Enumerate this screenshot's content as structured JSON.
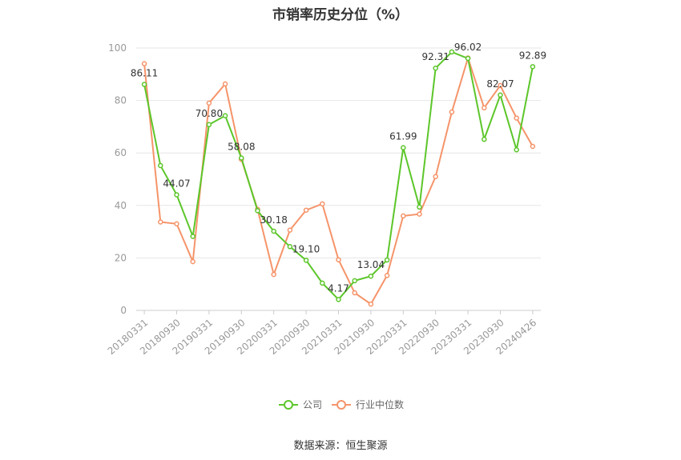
{
  "chart_data": {
    "type": "line",
    "title": "市销率历史分位（%）",
    "source": "数据来源：恒生聚源",
    "ylim": [
      0,
      100
    ],
    "yticks": [
      "0",
      "20",
      "40",
      "60",
      "80",
      "100"
    ],
    "x": [
      "20180331",
      "20180630",
      "20180930",
      "20181231",
      "20190331",
      "20190630",
      "20190930",
      "20191231",
      "20200331",
      "20200630",
      "20200930",
      "20201231",
      "20210331",
      "20210630",
      "20210930",
      "20211231",
      "20220331",
      "20220630",
      "20220930",
      "20221231",
      "20230331",
      "20230630",
      "20230930",
      "20231231",
      "20240426"
    ],
    "xtick_labels": [
      "20180331",
      "20180930",
      "20190331",
      "20190930",
      "20200331",
      "20200930",
      "20210331",
      "20210930",
      "20220331",
      "20220930",
      "20230331",
      "20230930",
      "20240426"
    ],
    "xtick_indices": [
      0,
      2,
      4,
      6,
      8,
      10,
      12,
      14,
      16,
      18,
      20,
      22,
      24
    ],
    "series": [
      {
        "name": "公司",
        "color": "#5cc62a",
        "values": [
          86.11,
          55.2,
          44.07,
          28.2,
          70.8,
          74.2,
          58.08,
          38.0,
          30.18,
          24.3,
          19.1,
          10.4,
          4.17,
          11.3,
          13.04,
          19.2,
          61.99,
          39.4,
          92.31,
          98.5,
          96.02,
          65.2,
          82.07,
          61.2,
          92.89
        ],
        "labels": {
          "0": "86.11",
          "2": "44.07",
          "4": "70.80",
          "6": "58.08",
          "8": "30.18",
          "10": "19.10",
          "12": "4.17",
          "14": "13.04",
          "16": "61.99",
          "18": "92.31",
          "20": "96.02",
          "22": "82.07",
          "24": "92.89"
        }
      },
      {
        "name": "行业中位数",
        "color": "#f5946a",
        "values": [
          94.0,
          33.7,
          33.0,
          18.6,
          79.0,
          86.3,
          57.6,
          38.5,
          13.7,
          30.6,
          38.2,
          40.6,
          19.3,
          6.7,
          2.4,
          13.3,
          36.0,
          36.7,
          51.0,
          75.6,
          96.2,
          77.2,
          85.7,
          73.3,
          62.5
        ]
      }
    ],
    "legend_position": "bottom",
    "grid": true
  }
}
